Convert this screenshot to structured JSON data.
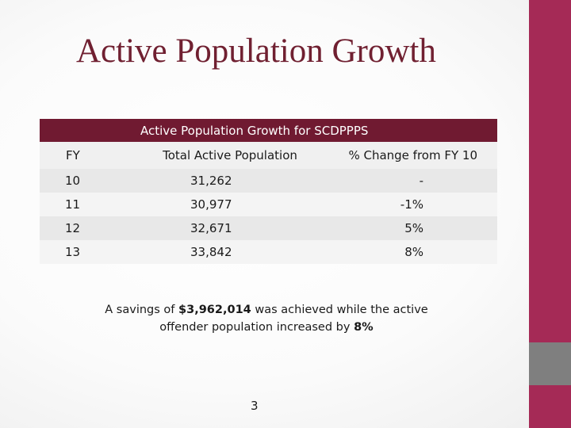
{
  "slide": {
    "title": "Active Population Growth",
    "page_number": "3",
    "colors": {
      "accent": "#a52a56",
      "accent_gray": "#7f7f7f",
      "title": "#702031",
      "table_header": "#701a31"
    }
  },
  "table": {
    "caption": "Active Population Growth for SCDPPPS",
    "columns": [
      "FY",
      "Total Active Population",
      "% Change from FY 10"
    ],
    "rows": [
      [
        "10",
        "31,262",
        "-"
      ],
      [
        "11",
        "30,977",
        "-1%"
      ],
      [
        "12",
        "32,671",
        "5%"
      ],
      [
        "13",
        "33,842",
        "8%"
      ]
    ]
  },
  "note": {
    "prefix": "A savings of ",
    "amount": "$3,962,014",
    "middle": " was achieved while the active offender population increased by ",
    "percent": "8%"
  }
}
